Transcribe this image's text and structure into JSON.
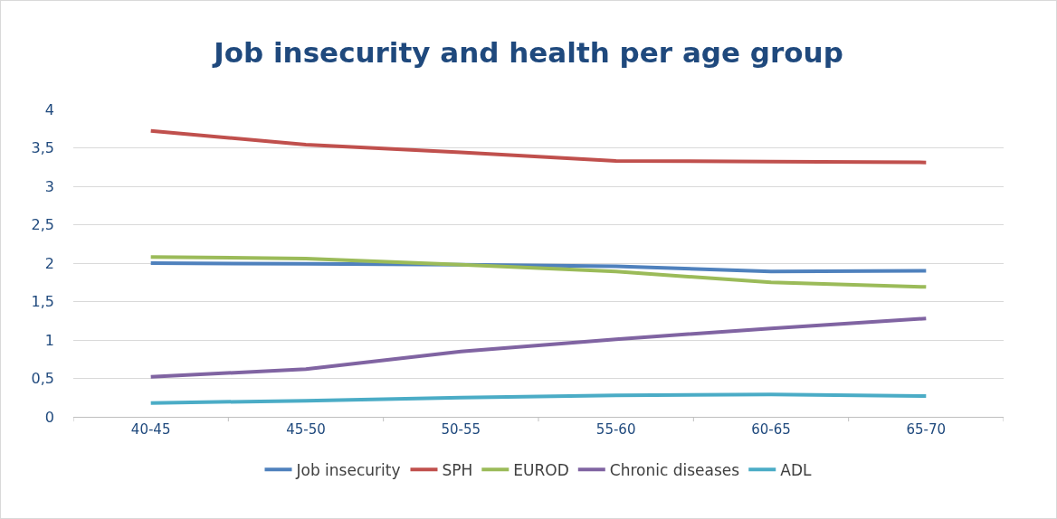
{
  "chart_data": {
    "type": "line",
    "title": "Job insecurity and health per age group",
    "categories": [
      "40-45",
      "45-50",
      "50-55",
      "55-60",
      "60-65",
      "65-70"
    ],
    "series": [
      {
        "name": "Job insecurity",
        "color": "#4f81bd",
        "values": [
          2.0,
          1.99,
          1.98,
          1.96,
          1.89,
          1.9
        ]
      },
      {
        "name": "SPH",
        "color": "#c0504d",
        "values": [
          3.72,
          3.54,
          3.44,
          3.33,
          3.32,
          3.31
        ]
      },
      {
        "name": "EUROD",
        "color": "#9bbb59",
        "values": [
          2.08,
          2.06,
          1.98,
          1.89,
          1.75,
          1.69
        ]
      },
      {
        "name": "Chronic diseases",
        "color": "#8064a2",
        "values": [
          0.52,
          0.62,
          0.85,
          1.01,
          1.15,
          1.28
        ]
      },
      {
        "name": "ADL",
        "color": "#4bacc6",
        "values": [
          0.18,
          0.21,
          0.25,
          0.28,
          0.29,
          0.27
        ]
      }
    ],
    "ylim": [
      0,
      4
    ],
    "yticks": [
      0,
      {
        "value": 0.5,
        "label": "0,5"
      },
      1,
      {
        "value": 1.5,
        "label": "1,5"
      },
      2,
      {
        "value": 2.5,
        "label": "2,5"
      },
      3,
      {
        "value": 3.5,
        "label": "3,5"
      },
      4
    ],
    "grid": "y",
    "legend": "bottom",
    "marker": "none",
    "line_style": "solid"
  }
}
